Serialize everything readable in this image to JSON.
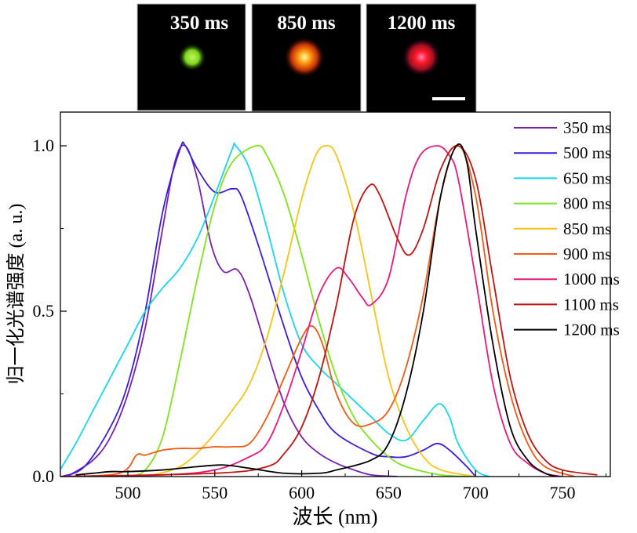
{
  "insets": [
    {
      "label": "350 ms",
      "spot_color": "#8ee21a"
    },
    {
      "label": "850 ms",
      "spot_color": "#ff7a10"
    },
    {
      "label": "1200 ms",
      "spot_color": "#ff1a2a"
    }
  ],
  "chart_data": {
    "type": "line",
    "title": "",
    "xlabel": "波长 (nm)",
    "ylabel": "归一化光谱强度 (a. u.)",
    "xlim": [
      461,
      778
    ],
    "ylim": [
      0,
      1.1
    ],
    "xticks": [
      500,
      550,
      600,
      650,
      700,
      750
    ],
    "xtick_labels": [
      "500",
      "550",
      "600",
      "650",
      "700",
      "750"
    ],
    "yticks": [
      0,
      0.5,
      1.0
    ],
    "ytick_labels": [
      "0.0",
      "0.5",
      "1.0"
    ],
    "grid": false,
    "legend_placement": "top-right",
    "series": [
      {
        "name": "350 ms",
        "color": "#7a1fb0",
        "x": [
          465,
          480,
          490,
          500,
          510,
          520,
          527,
          533,
          540,
          548,
          555,
          563,
          570,
          580,
          590,
          600,
          610,
          620,
          630,
          640,
          655
        ],
        "y": [
          0,
          0.05,
          0.12,
          0.25,
          0.45,
          0.75,
          0.95,
          1.0,
          0.9,
          0.7,
          0.62,
          0.625,
          0.55,
          0.38,
          0.22,
          0.12,
          0.07,
          0.04,
          0.02,
          0.005,
          0
        ]
      },
      {
        "name": "500 ms",
        "color": "#3a1ee0",
        "x": [
          462,
          475,
          490,
          500,
          510,
          520,
          530,
          533,
          540,
          550,
          560,
          565,
          575,
          590,
          600,
          610,
          620,
          640,
          650,
          660,
          670,
          678,
          685,
          695,
          700
        ],
        "y": [
          0,
          0.03,
          0.15,
          0.28,
          0.5,
          0.8,
          0.99,
          1.0,
          0.93,
          0.86,
          0.87,
          0.85,
          0.7,
          0.45,
          0.3,
          0.2,
          0.13,
          0.07,
          0.06,
          0.06,
          0.08,
          0.1,
          0.08,
          0.03,
          0
        ]
      },
      {
        "name": "650 ms",
        "color": "#18d6f0",
        "x": [
          461,
          470,
          480,
          490,
          500,
          510,
          520,
          530,
          540,
          550,
          560,
          562,
          570,
          580,
          590,
          600,
          610,
          620,
          630,
          640,
          650,
          660,
          670,
          679,
          685,
          690,
          700,
          708
        ],
        "y": [
          0.02,
          0.1,
          0.2,
          0.3,
          0.4,
          0.5,
          0.57,
          0.63,
          0.72,
          0.85,
          0.99,
          1.0,
          0.93,
          0.75,
          0.55,
          0.4,
          0.33,
          0.28,
          0.23,
          0.18,
          0.13,
          0.11,
          0.17,
          0.22,
          0.18,
          0.1,
          0.02,
          0
        ]
      },
      {
        "name": "800 ms",
        "color": "#7fe41a",
        "x": [
          500,
          510,
          520,
          530,
          540,
          550,
          560,
          574,
          580,
          590,
          600,
          610,
          620,
          630,
          640,
          650,
          660,
          680,
          700
        ],
        "y": [
          0,
          0.02,
          0.12,
          0.35,
          0.6,
          0.82,
          0.95,
          1.0,
          0.97,
          0.85,
          0.67,
          0.47,
          0.3,
          0.18,
          0.11,
          0.06,
          0.03,
          0.005,
          0
        ]
      },
      {
        "name": "850 ms",
        "color": "#f8c414",
        "x": [
          510,
          530,
          545,
          560,
          570,
          580,
          590,
          600,
          608,
          614,
          620,
          630,
          640,
          650,
          660,
          670,
          680,
          700
        ],
        "y": [
          0,
          0.03,
          0.1,
          0.2,
          0.28,
          0.42,
          0.62,
          0.84,
          0.97,
          1.0,
          0.97,
          0.8,
          0.55,
          0.3,
          0.15,
          0.06,
          0.02,
          0
        ]
      },
      {
        "name": "900 ms",
        "color": "#f05a14",
        "x": [
          460,
          495,
          505,
          510,
          520,
          530,
          540,
          550,
          560,
          570,
          580,
          590,
          600,
          606,
          612,
          620,
          630,
          640,
          650,
          660,
          670,
          680,
          690,
          700,
          710,
          720,
          730,
          740,
          757
        ],
        "y": [
          0,
          0.01,
          0.065,
          0.065,
          0.08,
          0.085,
          0.085,
          0.09,
          0.09,
          0.1,
          0.18,
          0.3,
          0.42,
          0.455,
          0.4,
          0.25,
          0.16,
          0.16,
          0.2,
          0.33,
          0.55,
          0.85,
          1.0,
          0.85,
          0.5,
          0.25,
          0.1,
          0.03,
          0
        ]
      },
      {
        "name": "1000 ms",
        "color": "#e8187f",
        "x": [
          460,
          520,
          550,
          570,
          580,
          590,
          600,
          610,
          620,
          627,
          635,
          640,
          650,
          660,
          668,
          678,
          685,
          690,
          700,
          710,
          720,
          730,
          740,
          750
        ],
        "y": [
          0,
          0.005,
          0.02,
          0.06,
          0.1,
          0.22,
          0.38,
          0.55,
          0.63,
          0.6,
          0.54,
          0.52,
          0.6,
          0.85,
          0.97,
          1.0,
          0.97,
          0.9,
          0.6,
          0.28,
          0.1,
          0.04,
          0.01,
          0
        ]
      },
      {
        "name": "1100 ms",
        "color": "#c0130f",
        "x": [
          460,
          550,
          580,
          590,
          600,
          610,
          620,
          630,
          639,
          645,
          655,
          662,
          670,
          680,
          690,
          700,
          710,
          720,
          730,
          740,
          750,
          770
        ],
        "y": [
          0,
          0.01,
          0.03,
          0.07,
          0.15,
          0.3,
          0.52,
          0.78,
          0.88,
          0.85,
          0.72,
          0.67,
          0.75,
          0.93,
          1.0,
          0.9,
          0.6,
          0.3,
          0.13,
          0.05,
          0.02,
          0.005
        ]
      },
      {
        "name": "1200 ms",
        "color": "#000000",
        "x": [
          470,
          480,
          490,
          500,
          520,
          540,
          555,
          570,
          590,
          610,
          620,
          640,
          650,
          660,
          670,
          680,
          689,
          695,
          700,
          710,
          720,
          730,
          740,
          748
        ],
        "y": [
          0.005,
          0.01,
          0.015,
          0.015,
          0.02,
          0.03,
          0.035,
          0.025,
          0.01,
          0.01,
          0.02,
          0.05,
          0.1,
          0.25,
          0.5,
          0.85,
          1.0,
          0.95,
          0.75,
          0.4,
          0.15,
          0.05,
          0.01,
          0
        ]
      }
    ]
  }
}
